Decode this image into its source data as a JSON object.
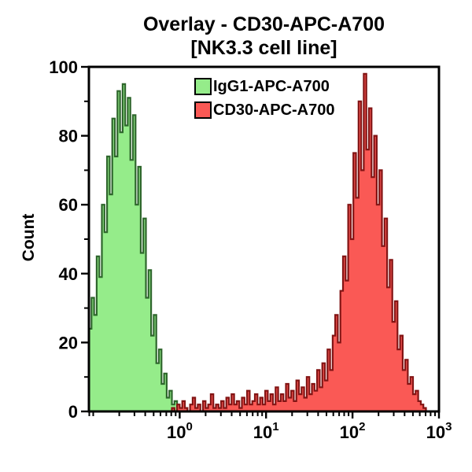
{
  "figure": {
    "title_line1": "Overlay - CD30-APC-A700",
    "title_line2": "[NK3.3 cell line]"
  },
  "legend": {
    "items": [
      {
        "id": "igg1",
        "label": "IgG1-APC-A700",
        "fill": "#95EC8A",
        "border": "#000000"
      },
      {
        "id": "cd30",
        "label": "CD30-APC-A700",
        "fill": "#FA5955",
        "border": "#000000"
      }
    ]
  },
  "chart_data": {
    "type": "area",
    "subtype": "flow-cytometry-histogram-overlay",
    "title": "Overlay - CD30-APC-A700 [NK3.3 cell line]",
    "xlabel": "",
    "ylabel": "Count",
    "x_scale": "log10",
    "x_range_log10": [
      -1.05,
      3
    ],
    "x_tick_base": "10",
    "x_major_tick_exponents": [
      0,
      1,
      2,
      3
    ],
    "y_range": [
      0,
      100
    ],
    "y_major_ticks": [
      0,
      20,
      40,
      60,
      80,
      100
    ],
    "y_minor_ticks": [
      10,
      30,
      50,
      70,
      90
    ],
    "grid": false,
    "legend_position": "top-center-inside",
    "frame_color": "#000000",
    "series": [
      {
        "id": "igg1",
        "name": "IgG1-APC-A700",
        "fill_color": "#95EC8A",
        "stroke_color": "#2E662C",
        "log10_x_start": -1.05,
        "log10_x_step": 0.03,
        "peak_count": 95,
        "peak_x": 0.22,
        "counts": [
          24,
          33,
          28,
          45,
          39,
          60,
          52,
          74,
          63,
          85,
          74,
          93,
          81,
          95,
          83,
          91,
          73,
          86,
          60,
          71,
          46,
          56,
          33,
          41,
          22,
          28,
          14,
          18,
          8,
          11,
          4,
          6,
          2,
          3,
          0,
          0
        ]
      },
      {
        "id": "cd30",
        "name": "CD30-APC-A700",
        "fill_color": "#FA5955",
        "stroke_color": "#821414",
        "log10_x_start": -0.09,
        "log10_x_step": 0.03,
        "peak_count": 98,
        "peak_x": 135,
        "counts": [
          1,
          0,
          2,
          1,
          3,
          1,
          0,
          2,
          4,
          1,
          2,
          0,
          3,
          1,
          2,
          5,
          1,
          2,
          1,
          3,
          1,
          4,
          2,
          5,
          2,
          3,
          1,
          4,
          2,
          6,
          2,
          3,
          5,
          2,
          4,
          2,
          6,
          3,
          5,
          2,
          7,
          3,
          5,
          3,
          8,
          4,
          6,
          3,
          9,
          5,
          7,
          4,
          10,
          5,
          8,
          6,
          12,
          7,
          14,
          9,
          18,
          12,
          22,
          28,
          20,
          35,
          45,
          38,
          60,
          50,
          75,
          62,
          90,
          70,
          98,
          76,
          88,
          68,
          80,
          60,
          70,
          48,
          56,
          36,
          44,
          26,
          32,
          18,
          22,
          12,
          15,
          8,
          10,
          5,
          6,
          3,
          2,
          1,
          0
        ]
      }
    ]
  }
}
